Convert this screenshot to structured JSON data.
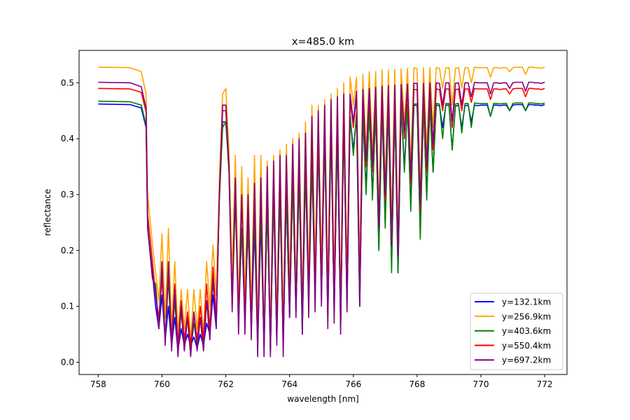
{
  "chart_data": {
    "type": "line",
    "title": "x=485.0 km",
    "xlabel": "wavelength [nm]",
    "ylabel": "reflectance",
    "xlim": [
      757.4,
      772.7
    ],
    "ylim": [
      -0.022,
      0.558
    ],
    "xticks": [
      "758",
      "760",
      "762",
      "764",
      "766",
      "768",
      "770",
      "772"
    ],
    "yticks": [
      "0.0",
      "0.1",
      "0.2",
      "0.3",
      "0.4",
      "0.5"
    ],
    "grid": false,
    "legend_position": "lower-right",
    "x": [
      758.0,
      759.0,
      759.35,
      759.5,
      759.55,
      759.7,
      759.8,
      759.9,
      760.0,
      760.1,
      760.2,
      760.3,
      760.4,
      760.5,
      760.6,
      760.7,
      760.8,
      760.9,
      761.0,
      761.1,
      761.2,
      761.3,
      761.4,
      761.5,
      761.6,
      761.7,
      761.8,
      761.9,
      762.0,
      762.1,
      762.2,
      762.3,
      762.4,
      762.5,
      762.6,
      762.7,
      762.8,
      762.9,
      763.0,
      763.1,
      763.2,
      763.3,
      763.4,
      763.5,
      763.6,
      763.7,
      763.8,
      763.9,
      764.0,
      764.1,
      764.2,
      764.3,
      764.4,
      764.5,
      764.6,
      764.7,
      764.8,
      764.9,
      765.0,
      765.1,
      765.2,
      765.3,
      765.4,
      765.5,
      765.6,
      765.7,
      765.8,
      765.9,
      766.0,
      766.1,
      766.2,
      766.3,
      766.4,
      766.5,
      766.6,
      766.7,
      766.8,
      766.9,
      767.0,
      767.1,
      767.2,
      767.3,
      767.4,
      767.5,
      767.6,
      767.7,
      767.8,
      767.9,
      768.0,
      768.1,
      768.2,
      768.3,
      768.4,
      768.5,
      768.6,
      768.7,
      768.8,
      768.9,
      769.0,
      769.1,
      769.2,
      769.3,
      769.4,
      769.5,
      769.6,
      769.7,
      769.8,
      769.9,
      770.0,
      770.1,
      770.2,
      770.3,
      770.4,
      770.5,
      770.6,
      770.7,
      770.8,
      770.9,
      771.0,
      771.1,
      771.2,
      771.3,
      771.4,
      771.5,
      771.6,
      771.7,
      771.8,
      771.9,
      772.0
    ],
    "series": [
      {
        "name": "y=132.1km",
        "color": "#0000ff",
        "values": [
          0.462,
          0.461,
          0.455,
          0.42,
          0.24,
          0.16,
          0.1,
          0.06,
          0.12,
          0.04,
          0.1,
          0.03,
          0.08,
          0.02,
          0.06,
          0.03,
          0.05,
          0.03,
          0.045,
          0.025,
          0.05,
          0.03,
          0.07,
          0.05,
          0.12,
          0.06,
          0.3,
          0.43,
          0.43,
          0.35,
          0.12,
          0.31,
          0.08,
          0.24,
          0.07,
          0.25,
          0.06,
          0.24,
          0.03,
          0.25,
          0.03,
          0.28,
          0.02,
          0.3,
          0.04,
          0.31,
          0.03,
          0.3,
          0.08,
          0.33,
          0.09,
          0.33,
          0.05,
          0.35,
          0.11,
          0.36,
          0.12,
          0.39,
          0.12,
          0.4,
          0.08,
          0.42,
          0.09,
          0.41,
          0.06,
          0.43,
          0.1,
          0.44,
          0.38,
          0.44,
          0.1,
          0.44,
          0.31,
          0.45,
          0.3,
          0.45,
          0.2,
          0.455,
          0.25,
          0.455,
          0.17,
          0.455,
          0.16,
          0.458,
          0.35,
          0.458,
          0.28,
          0.46,
          0.459,
          0.23,
          0.46,
          0.3,
          0.46,
          0.34,
          0.46,
          0.459,
          0.42,
          0.46,
          0.46,
          0.38,
          0.458,
          0.46,
          0.42,
          0.459,
          0.46,
          0.43,
          0.46,
          0.459,
          0.46,
          0.46,
          0.46,
          0.44,
          0.46,
          0.46,
          0.459,
          0.46,
          0.46,
          0.45,
          0.46,
          0.461,
          0.461,
          0.461,
          0.45,
          0.461,
          0.461,
          0.46,
          0.46,
          0.459,
          0.461
        ]
      },
      {
        "name": "y=256.9km",
        "color": "#ffa500",
        "values": [
          0.528,
          0.527,
          0.52,
          0.48,
          0.3,
          0.21,
          0.16,
          0.11,
          0.23,
          0.08,
          0.24,
          0.06,
          0.18,
          0.05,
          0.13,
          0.06,
          0.13,
          0.04,
          0.13,
          0.06,
          0.13,
          0.05,
          0.18,
          0.1,
          0.21,
          0.12,
          0.33,
          0.48,
          0.49,
          0.38,
          0.16,
          0.37,
          0.1,
          0.35,
          0.12,
          0.33,
          0.09,
          0.37,
          0.06,
          0.37,
          0.05,
          0.36,
          0.05,
          0.37,
          0.08,
          0.38,
          0.07,
          0.39,
          0.14,
          0.4,
          0.14,
          0.41,
          0.11,
          0.43,
          0.15,
          0.46,
          0.17,
          0.46,
          0.17,
          0.47,
          0.14,
          0.48,
          0.15,
          0.49,
          0.11,
          0.5,
          0.16,
          0.51,
          0.46,
          0.51,
          0.17,
          0.515,
          0.38,
          0.52,
          0.37,
          0.52,
          0.27,
          0.523,
          0.32,
          0.523,
          0.25,
          0.524,
          0.23,
          0.525,
          0.43,
          0.526,
          0.35,
          0.527,
          0.525,
          0.3,
          0.527,
          0.38,
          0.527,
          0.42,
          0.527,
          0.526,
          0.49,
          0.527,
          0.527,
          0.46,
          0.526,
          0.527,
          0.49,
          0.527,
          0.527,
          0.5,
          0.528,
          0.527,
          0.527,
          0.527,
          0.527,
          0.51,
          0.527,
          0.527,
          0.526,
          0.527,
          0.527,
          0.52,
          0.527,
          0.528,
          0.528,
          0.528,
          0.515,
          0.528,
          0.528,
          0.527,
          0.527,
          0.526,
          0.528
        ]
      },
      {
        "name": "y=403.6km",
        "color": "#008000",
        "values": [
          0.467,
          0.466,
          0.46,
          0.425,
          0.245,
          0.15,
          0.14,
          0.06,
          0.16,
          0.04,
          0.15,
          0.03,
          0.11,
          0.025,
          0.09,
          0.03,
          0.08,
          0.02,
          0.07,
          0.03,
          0.08,
          0.03,
          0.11,
          0.06,
          0.15,
          0.07,
          0.29,
          0.42,
          0.43,
          0.34,
          0.1,
          0.29,
          0.07,
          0.24,
          0.08,
          0.24,
          0.06,
          0.26,
          0.03,
          0.27,
          0.03,
          0.28,
          0.02,
          0.3,
          0.04,
          0.3,
          0.03,
          0.3,
          0.08,
          0.32,
          0.09,
          0.33,
          0.06,
          0.34,
          0.1,
          0.35,
          0.12,
          0.39,
          0.12,
          0.4,
          0.09,
          0.41,
          0.09,
          0.42,
          0.06,
          0.43,
          0.1,
          0.44,
          0.37,
          0.445,
          0.1,
          0.45,
          0.3,
          0.455,
          0.29,
          0.455,
          0.2,
          0.458,
          0.24,
          0.458,
          0.16,
          0.46,
          0.16,
          0.46,
          0.34,
          0.462,
          0.27,
          0.462,
          0.462,
          0.22,
          0.462,
          0.29,
          0.463,
          0.34,
          0.463,
          0.462,
          0.4,
          0.463,
          0.463,
          0.38,
          0.462,
          0.463,
          0.41,
          0.463,
          0.463,
          0.42,
          0.464,
          0.463,
          0.463,
          0.463,
          0.463,
          0.44,
          0.463,
          0.463,
          0.462,
          0.463,
          0.463,
          0.45,
          0.463,
          0.464,
          0.464,
          0.464,
          0.45,
          0.464,
          0.464,
          0.463,
          0.463,
          0.462,
          0.464
        ]
      },
      {
        "name": "y=550.4km",
        "color": "#ff0000",
        "values": [
          0.49,
          0.489,
          0.483,
          0.448,
          0.265,
          0.18,
          0.12,
          0.08,
          0.15,
          0.04,
          0.17,
          0.04,
          0.14,
          0.03,
          0.11,
          0.04,
          0.09,
          0.03,
          0.09,
          0.04,
          0.1,
          0.04,
          0.14,
          0.06,
          0.17,
          0.08,
          0.3,
          0.45,
          0.45,
          0.35,
          0.11,
          0.32,
          0.08,
          0.3,
          0.08,
          0.29,
          0.07,
          0.31,
          0.04,
          0.31,
          0.04,
          0.33,
          0.03,
          0.34,
          0.05,
          0.35,
          0.04,
          0.36,
          0.1,
          0.37,
          0.1,
          0.37,
          0.08,
          0.39,
          0.12,
          0.41,
          0.14,
          0.42,
          0.14,
          0.44,
          0.11,
          0.45,
          0.12,
          0.46,
          0.08,
          0.465,
          0.13,
          0.47,
          0.42,
          0.475,
          0.13,
          0.478,
          0.35,
          0.48,
          0.34,
          0.482,
          0.24,
          0.484,
          0.29,
          0.485,
          0.21,
          0.486,
          0.19,
          0.487,
          0.4,
          0.488,
          0.32,
          0.488,
          0.488,
          0.27,
          0.488,
          0.34,
          0.489,
          0.38,
          0.489,
          0.488,
          0.45,
          0.489,
          0.489,
          0.42,
          0.488,
          0.489,
          0.45,
          0.489,
          0.489,
          0.465,
          0.49,
          0.489,
          0.489,
          0.489,
          0.489,
          0.47,
          0.489,
          0.489,
          0.488,
          0.489,
          0.489,
          0.48,
          0.489,
          0.49,
          0.49,
          0.49,
          0.475,
          0.49,
          0.49,
          0.489,
          0.489,
          0.488,
          0.49
        ]
      },
      {
        "name": "y=697.2km",
        "color": "#800080",
        "values": [
          0.501,
          0.5,
          0.493,
          0.455,
          0.24,
          0.15,
          0.13,
          0.06,
          0.18,
          0.03,
          0.18,
          0.02,
          0.13,
          0.01,
          0.1,
          0.02,
          0.08,
          0.01,
          0.09,
          0.02,
          0.08,
          0.02,
          0.11,
          0.04,
          0.15,
          0.06,
          0.3,
          0.46,
          0.46,
          0.35,
          0.09,
          0.33,
          0.05,
          0.3,
          0.05,
          0.3,
          0.04,
          0.32,
          0.01,
          0.33,
          0.01,
          0.35,
          0.01,
          0.36,
          0.03,
          0.37,
          0.01,
          0.37,
          0.08,
          0.39,
          0.08,
          0.4,
          0.05,
          0.41,
          0.08,
          0.44,
          0.09,
          0.45,
          0.1,
          0.46,
          0.06,
          0.47,
          0.07,
          0.475,
          0.05,
          0.48,
          0.09,
          0.48,
          0.43,
          0.485,
          0.1,
          0.488,
          0.36,
          0.49,
          0.35,
          0.492,
          0.24,
          0.494,
          0.3,
          0.495,
          0.21,
          0.496,
          0.19,
          0.497,
          0.41,
          0.498,
          0.33,
          0.499,
          0.499,
          0.28,
          0.499,
          0.35,
          0.5,
          0.39,
          0.5,
          0.499,
          0.46,
          0.5,
          0.5,
          0.43,
          0.499,
          0.5,
          0.46,
          0.5,
          0.5,
          0.475,
          0.501,
          0.5,
          0.5,
          0.5,
          0.5,
          0.48,
          0.5,
          0.5,
          0.499,
          0.5,
          0.5,
          0.49,
          0.5,
          0.501,
          0.501,
          0.501,
          0.485,
          0.501,
          0.501,
          0.5,
          0.5,
          0.499,
          0.501
        ]
      }
    ]
  }
}
